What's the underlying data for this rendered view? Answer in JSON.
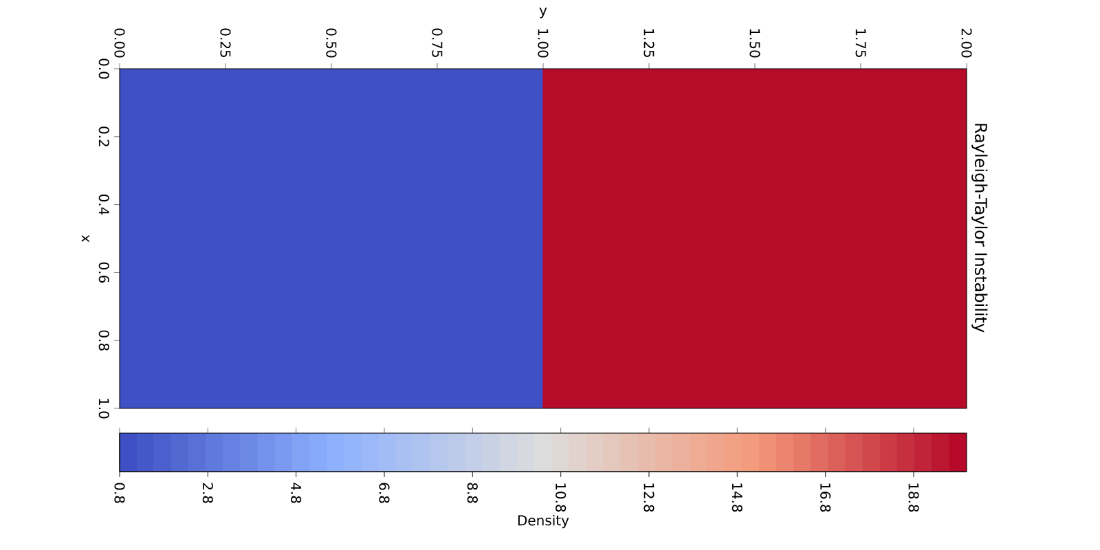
{
  "chart_data": {
    "type": "heatmap",
    "title": "Rayleigh-Taylor Instability",
    "xlabel": "y",
    "ylabel": "x",
    "clabel": "Density",
    "xlim": [
      0,
      2
    ],
    "ylim": [
      1,
      0
    ],
    "xticks": [
      {
        "value": 0,
        "label": "0.00"
      },
      {
        "value": 0.25,
        "label": "0.25"
      },
      {
        "value": 0.5,
        "label": "0.50"
      },
      {
        "value": 0.75,
        "label": "0.75"
      },
      {
        "value": 1,
        "label": "1.00"
      },
      {
        "value": 1.25,
        "label": "1.25"
      },
      {
        "value": 1.5,
        "label": "1.50"
      },
      {
        "value": 1.75,
        "label": "1.75"
      },
      {
        "value": 2,
        "label": "2.00"
      }
    ],
    "yticks": [
      {
        "value": 0,
        "label": "0.0"
      },
      {
        "value": 0.2,
        "label": "0.2"
      },
      {
        "value": 0.4,
        "label": "0.4"
      },
      {
        "value": 0.6,
        "label": "0.6"
      },
      {
        "value": 0.8,
        "label": "0.8"
      },
      {
        "value": 1,
        "label": "1.0"
      }
    ],
    "cells": [
      [
        1,
        19.8
      ]
    ],
    "clim": [
      0.8,
      20
    ],
    "cticks": [
      0.8,
      2.8,
      4.8,
      6.8,
      8.8,
      10.8,
      12.8,
      14.8,
      16.8,
      18.8
    ]
  }
}
